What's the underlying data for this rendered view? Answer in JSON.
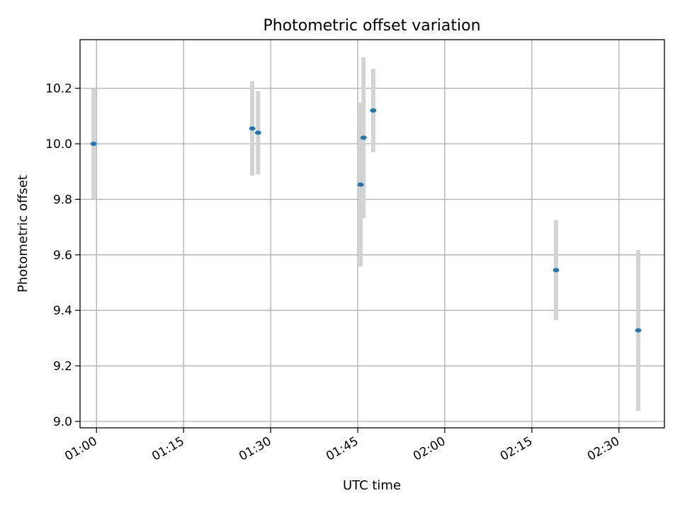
{
  "chart_data": {
    "type": "scatter",
    "title": "Photometric offset variation",
    "xlabel": "UTC time",
    "ylabel": "Photometric offset",
    "x_tick_labels": [
      "01:00",
      "01:15",
      "01:30",
      "01:45",
      "02:00",
      "02:15",
      "02:30"
    ],
    "x_ticks": [
      "01:00",
      "01:15",
      "01:30",
      "01:45",
      "02:00",
      "02:15",
      "02:30"
    ],
    "y_ticks": [
      9.0,
      9.2,
      9.4,
      9.6,
      9.8,
      10.0,
      10.2
    ],
    "y_tick_labels": [
      "9.0",
      "9.2",
      "9.4",
      "9.6",
      "9.8",
      "10.0",
      "10.2"
    ],
    "xlim": [
      "00:57:10",
      "02:37:50"
    ],
    "ylim": [
      8.977,
      10.375
    ],
    "grid": true,
    "series": [
      {
        "x": [
          "00:59:30",
          "01:26:50",
          "01:27:50",
          "01:45:30",
          "01:46:00",
          "01:47:40",
          "02:19:10",
          "02:33:20"
        ],
        "y": [
          10.0,
          10.055,
          10.04,
          9.853,
          10.022,
          10.12,
          9.545,
          9.328
        ],
        "err": [
          0.2,
          0.17,
          0.15,
          0.295,
          0.29,
          0.15,
          0.18,
          0.29
        ],
        "marker_color": "#1f77b4",
        "errorbar_color": "#d3d3d3"
      }
    ]
  }
}
